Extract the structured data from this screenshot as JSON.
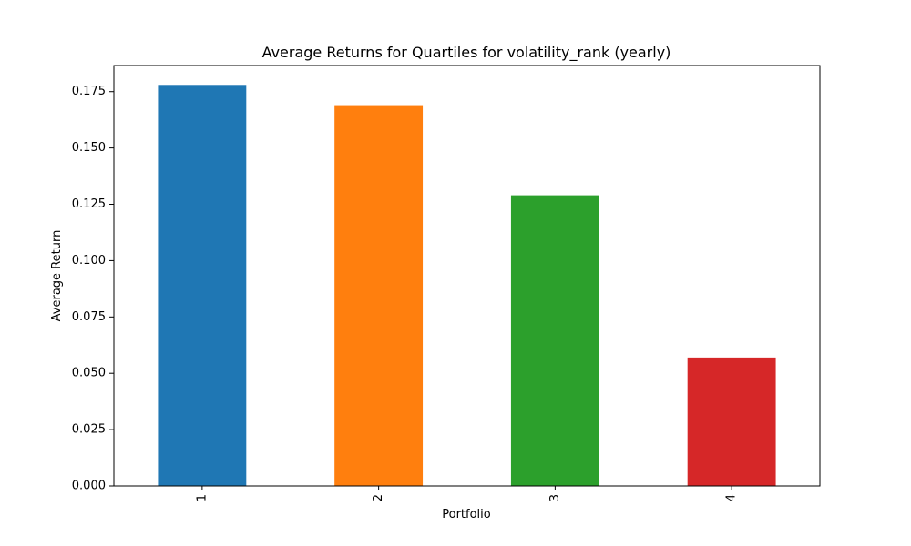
{
  "chart_data": {
    "type": "bar",
    "title": "Average Returns for Quartiles for volatility_rank (yearly)",
    "xlabel": "Portfolio",
    "ylabel": "Average Return",
    "categories": [
      "1",
      "2",
      "3",
      "4"
    ],
    "values": [
      0.178,
      0.169,
      0.129,
      0.057
    ],
    "colors": [
      "#1f77b4",
      "#ff7f0e",
      "#2ca02c",
      "#d62728"
    ],
    "ylim": [
      0,
      0.1866
    ],
    "yticks": [
      "0.000",
      "0.025",
      "0.050",
      "0.075",
      "0.100",
      "0.125",
      "0.150",
      "0.175"
    ],
    "grid": false,
    "legend": "none"
  }
}
